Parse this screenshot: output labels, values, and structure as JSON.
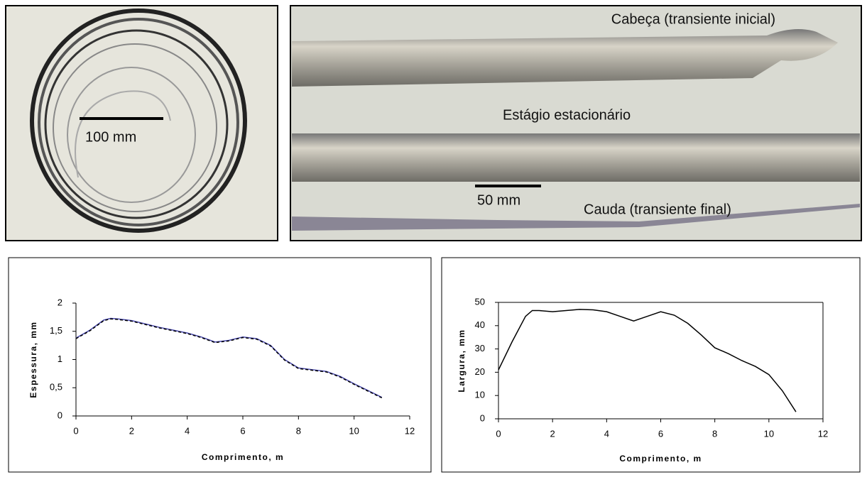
{
  "photos": {
    "coil_scale": "100 mm",
    "head": "Cabeça (transiente inicial)",
    "steady": "Estágio estacionário",
    "strip_scale": "50 mm",
    "tail": "Cauda (transiente final)"
  },
  "chart_data": [
    {
      "type": "line",
      "xlabel": "Comprimento, m",
      "ylabel": "Espessura, mm",
      "x": [
        0,
        0.5,
        1,
        1.25,
        1.5,
        2,
        2.5,
        3,
        3.5,
        4,
        4.5,
        5,
        5.5,
        6,
        6.5,
        7,
        7.5,
        8,
        8.5,
        9,
        9.5,
        10,
        10.5,
        11
      ],
      "series": [
        {
          "color": "#4a4ab0",
          "values": [
            1.38,
            1.52,
            1.7,
            1.73,
            1.72,
            1.69,
            1.63,
            1.57,
            1.52,
            1.47,
            1.4,
            1.31,
            1.34,
            1.4,
            1.37,
            1.25,
            1.0,
            0.85,
            0.82,
            0.79,
            0.7,
            0.57,
            0.45,
            0.33
          ]
        },
        {
          "color": "#000000",
          "dashed": true,
          "values": [
            1.37,
            1.51,
            1.69,
            1.72,
            1.71,
            1.68,
            1.62,
            1.56,
            1.51,
            1.46,
            1.39,
            1.3,
            1.33,
            1.39,
            1.36,
            1.24,
            0.99,
            0.84,
            0.81,
            0.78,
            0.69,
            0.56,
            0.44,
            0.32
          ]
        }
      ],
      "xlim": [
        0,
        12
      ],
      "xticks": [
        0,
        2,
        4,
        6,
        8,
        10,
        12
      ],
      "ylim": [
        0,
        2
      ],
      "yticks": [
        0,
        {
          "value": 0.5,
          "label": "0,5"
        },
        1,
        {
          "value": 1.5,
          "label": "1,5"
        },
        2
      ],
      "frame": false
    },
    {
      "type": "line",
      "xlabel": "Comprimento, m",
      "ylabel": "Largura, mm",
      "x": [
        0,
        0.5,
        1,
        1.25,
        1.5,
        2,
        2.5,
        3,
        3.5,
        4,
        4.5,
        5,
        5.5,
        6,
        6.5,
        7,
        7.5,
        8,
        8.5,
        9,
        9.5,
        10,
        10.5,
        11
      ],
      "series": [
        {
          "color": "#000000",
          "values": [
            21,
            33,
            44,
            46.5,
            46.5,
            46,
            46.5,
            47,
            46.8,
            46,
            44,
            42,
            44,
            46,
            44.5,
            41,
            36,
            30.5,
            28,
            25,
            22.5,
            19,
            12,
            3
          ]
        }
      ],
      "xlim": [
        0,
        12
      ],
      "xticks": [
        0,
        2,
        4,
        6,
        8,
        10,
        12
      ],
      "ylim": [
        0,
        50
      ],
      "yticks": [
        0,
        10,
        20,
        30,
        40,
        50
      ],
      "frame": true
    }
  ]
}
